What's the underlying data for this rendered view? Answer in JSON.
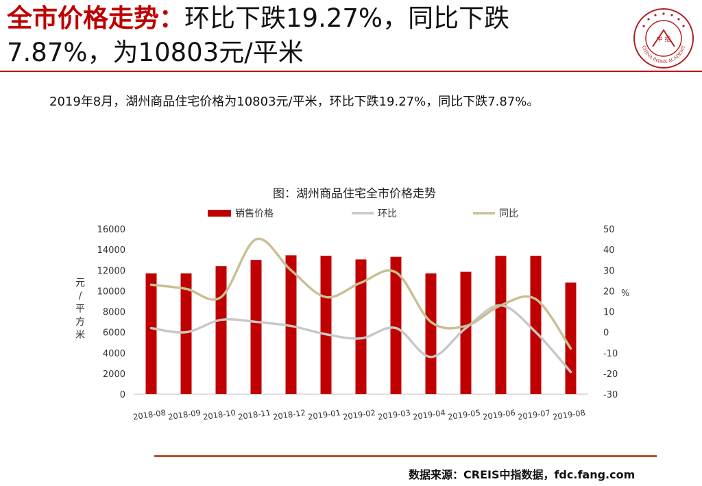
{
  "header": {
    "title_highlight": "全市价格走势：",
    "title_rest": "环比下跌19.27%，同比下跌7.87%，为10803元/平米",
    "logo_text": "CHINA INDEX ACADEMY",
    "logo_center": "中 指"
  },
  "summary": "2019年8月，湖州商品住宅价格为10803元/平米，环比下跌19.27%，同比下跌7.87%。",
  "colors": {
    "accent": "#c00000",
    "bar": "#c00000",
    "mom": "#c8c8c8",
    "yoy": "#c9bf94",
    "rule": "#b5532b"
  },
  "chart_data": {
    "type": "bar",
    "title": "图：湖州商品住宅全市价格走势",
    "categories": [
      "2018-08",
      "2018-09",
      "2018-10",
      "2018-11",
      "2018-12",
      "2019-01",
      "2019-02",
      "2019-03",
      "2019-04",
      "2019-05",
      "2019-06",
      "2019-07",
      "2019-08"
    ],
    "series": [
      {
        "name": "销售价格",
        "type": "bar",
        "axis": "left",
        "values": [
          11700,
          11700,
          12400,
          13000,
          13450,
          13400,
          13050,
          13300,
          11700,
          11850,
          13400,
          13400,
          10803
        ]
      },
      {
        "name": "环比",
        "type": "line",
        "axis": "right",
        "values": [
          2,
          0,
          6,
          5,
          3,
          -1,
          -3,
          2,
          -12,
          2,
          13,
          0,
          -19.27
        ]
      },
      {
        "name": "同比",
        "type": "line",
        "axis": "right",
        "values": [
          23,
          21,
          17,
          45,
          30,
          17,
          24,
          29,
          5,
          3,
          13,
          16,
          -7.87
        ]
      }
    ],
    "ylabel": "元/平方米",
    "ylim": [
      0,
      16000
    ],
    "yticks": [
      "0",
      "2000",
      "4000",
      "6000",
      "8000",
      "10000",
      "12000",
      "14000",
      "16000"
    ],
    "y2label": "%",
    "y2lim": [
      -30,
      50
    ],
    "y2ticks": [
      "-30",
      "-20",
      "-10",
      "0",
      "10",
      "20",
      "30",
      "40",
      "50"
    ],
    "grid": false,
    "legend_position": "top"
  },
  "footer": {
    "source": "数据来源：CREIS中指数据，fdc.fang.com"
  }
}
